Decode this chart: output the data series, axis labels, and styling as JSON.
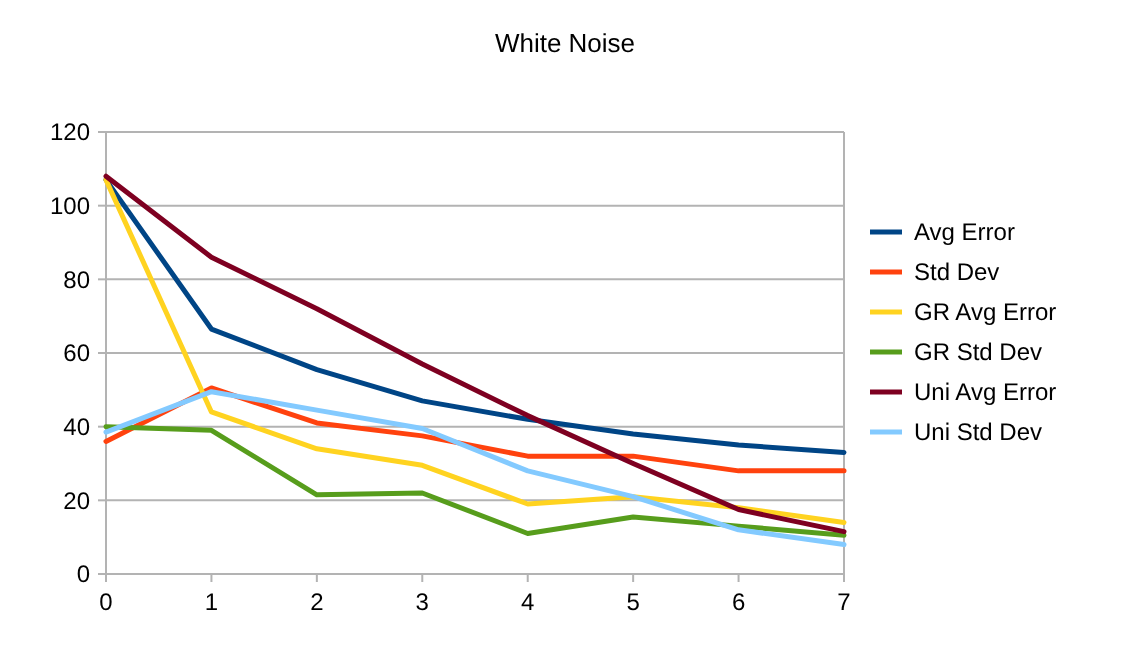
{
  "chart_data": {
    "type": "line",
    "title": "White Noise",
    "x": [
      0,
      1,
      2,
      3,
      4,
      5,
      6,
      7
    ],
    "xlim": [
      0,
      7
    ],
    "xticks": [
      0,
      1,
      2,
      3,
      4,
      5,
      6,
      7
    ],
    "ylim": [
      0,
      120
    ],
    "yticks": [
      0,
      20,
      40,
      60,
      80,
      100,
      120
    ],
    "grid": "y",
    "legend": "right",
    "marker": "none",
    "line_style": "solid",
    "series": [
      {
        "name": "Avg Error",
        "color": "#004586",
        "values": [
          107,
          66.5,
          55.5,
          47,
          42,
          38,
          35,
          33
        ]
      },
      {
        "name": "Std Dev",
        "color": "#ff420e",
        "values": [
          36,
          50.5,
          41,
          37.5,
          32,
          32,
          28,
          28
        ]
      },
      {
        "name": "GR Avg Error",
        "color": "#ffd320",
        "values": [
          107,
          44,
          34,
          29.5,
          19,
          21,
          18,
          14
        ]
      },
      {
        "name": "GR Std Dev",
        "color": "#579d1c",
        "values": [
          40,
          39,
          21.5,
          22,
          11,
          15.5,
          13,
          10.5
        ]
      },
      {
        "name": "Uni Avg Error",
        "color": "#7e0021",
        "values": [
          108,
          86,
          72,
          57,
          43,
          30,
          17.5,
          11.5
        ]
      },
      {
        "name": "Uni Std Dev",
        "color": "#83caff",
        "values": [
          38.5,
          49.5,
          44.5,
          39.5,
          28,
          21,
          12,
          8
        ]
      }
    ]
  }
}
